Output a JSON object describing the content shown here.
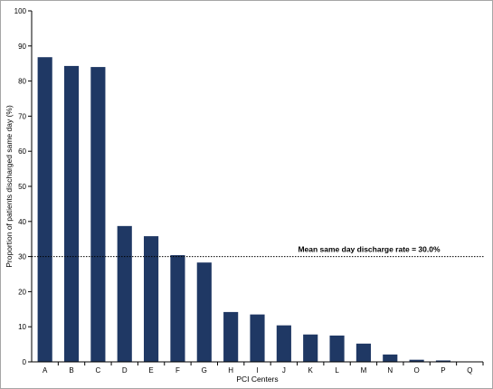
{
  "chart_data": {
    "type": "bar",
    "title": "",
    "xlabel": "PCI Centers",
    "ylabel": "Proportion of patients discharged same day (%)",
    "ylim": [
      0,
      100
    ],
    "yticks": [
      0,
      10,
      20,
      30,
      40,
      50,
      60,
      70,
      80,
      90,
      100
    ],
    "grid": false,
    "legend": "none",
    "bar_color": "#1f3864",
    "categories": [
      "A",
      "B",
      "C",
      "D",
      "E",
      "F",
      "G",
      "H",
      "I",
      "J",
      "K",
      "L",
      "M",
      "N",
      "O",
      "P",
      "Q"
    ],
    "values": [
      86.8,
      84.3,
      84.0,
      38.7,
      35.8,
      30.4,
      28.3,
      14.2,
      13.5,
      10.4,
      7.8,
      7.5,
      5.2,
      2.1,
      0.6,
      0.4,
      0.0
    ],
    "reference_line": {
      "value": 30.0,
      "label": "Mean same day discharge rate = 30.0%",
      "style": "dotted"
    }
  }
}
